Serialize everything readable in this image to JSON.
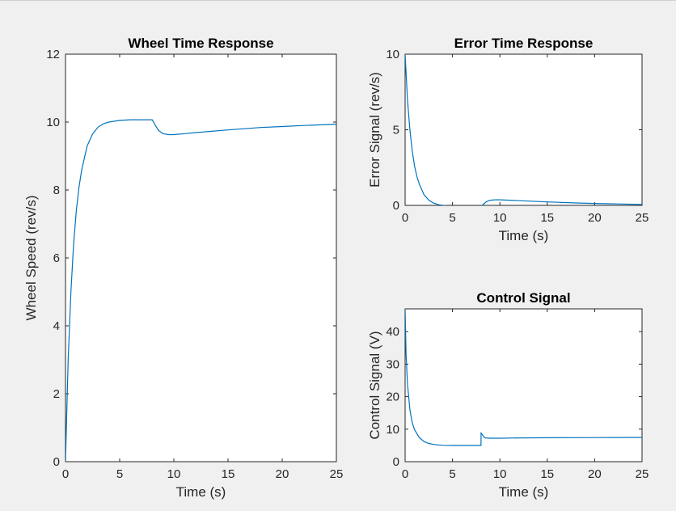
{
  "colors": {
    "line": "#0072bd",
    "axes_bg": "#ffffff",
    "figure_bg": "#f0f0f0",
    "axis": "#262626"
  },
  "chart_data": [
    {
      "type": "line",
      "title": "Wheel Time Response",
      "xlabel": "Time (s)",
      "ylabel": "Wheel Speed (rev/s)",
      "xlim": [
        0,
        25
      ],
      "ylim": [
        0,
        12
      ],
      "xticks": [
        0,
        5,
        10,
        15,
        20,
        25
      ],
      "yticks": [
        0,
        2,
        4,
        6,
        8,
        10,
        12
      ],
      "grid": false,
      "series": [
        {
          "x": [
            0,
            0.25,
            0.5,
            0.75,
            1,
            1.25,
            1.5,
            2,
            2.5,
            3,
            3.5,
            4,
            5,
            6,
            7,
            8,
            8.3,
            8.6,
            9,
            9.5,
            10,
            11,
            12,
            15,
            18,
            20,
            22,
            25
          ],
          "y": [
            0,
            3.0,
            5.0,
            6.4,
            7.4,
            8.1,
            8.6,
            9.3,
            9.65,
            9.85,
            9.95,
            10.0,
            10.05,
            10.07,
            10.07,
            10.07,
            9.9,
            9.75,
            9.66,
            9.63,
            9.63,
            9.66,
            9.69,
            9.77,
            9.84,
            9.87,
            9.9,
            9.94
          ]
        }
      ]
    },
    {
      "type": "line",
      "title": "Error Time Response",
      "xlabel": "Time (s)",
      "ylabel": "Error Signal (rev/s)",
      "xlim": [
        0,
        25
      ],
      "ylim": [
        0,
        10
      ],
      "xticks": [
        0,
        5,
        10,
        15,
        20,
        25
      ],
      "yticks": [
        0,
        5,
        10
      ],
      "grid": false,
      "series": [
        {
          "x": [
            0,
            0.25,
            0.5,
            0.75,
            1,
            1.25,
            1.5,
            2,
            2.5,
            3,
            3.5,
            4,
            4.5,
            5,
            6,
            7,
            8,
            8.3,
            8.6,
            9,
            9.5,
            10,
            11,
            12,
            15,
            18,
            20,
            22,
            25
          ],
          "y": [
            10,
            7.0,
            5.0,
            3.6,
            2.6,
            1.9,
            1.4,
            0.7,
            0.35,
            0.15,
            0.05,
            0.0,
            -0.03,
            -0.05,
            -0.07,
            -0.07,
            -0.07,
            0.1,
            0.25,
            0.34,
            0.37,
            0.37,
            0.34,
            0.31,
            0.23,
            0.16,
            0.13,
            0.1,
            0.06
          ]
        }
      ]
    },
    {
      "type": "line",
      "title": "Control Signal",
      "xlabel": "Time (s)",
      "ylabel": "Control Signal (V)",
      "xlim": [
        0,
        25
      ],
      "ylim": [
        0,
        47
      ],
      "xticks": [
        0,
        5,
        10,
        15,
        20,
        25
      ],
      "yticks": [
        0,
        10,
        20,
        30,
        40
      ],
      "grid": false,
      "series": [
        {
          "x": [
            0,
            0.1,
            0.25,
            0.5,
            0.75,
            1,
            1.5,
            2,
            2.5,
            3,
            3.5,
            4,
            5,
            6,
            7,
            8,
            8.02,
            8.15,
            8.3,
            8.5,
            9,
            10,
            12,
            15,
            20,
            25
          ],
          "y": [
            47,
            33,
            24,
            16,
            12,
            9.8,
            7.4,
            6.2,
            5.6,
            5.3,
            5.15,
            5.05,
            5.0,
            5.0,
            5.0,
            5.0,
            8.8,
            8.3,
            7.6,
            7.3,
            7.2,
            7.2,
            7.3,
            7.35,
            7.4,
            7.45
          ]
        }
      ]
    }
  ]
}
